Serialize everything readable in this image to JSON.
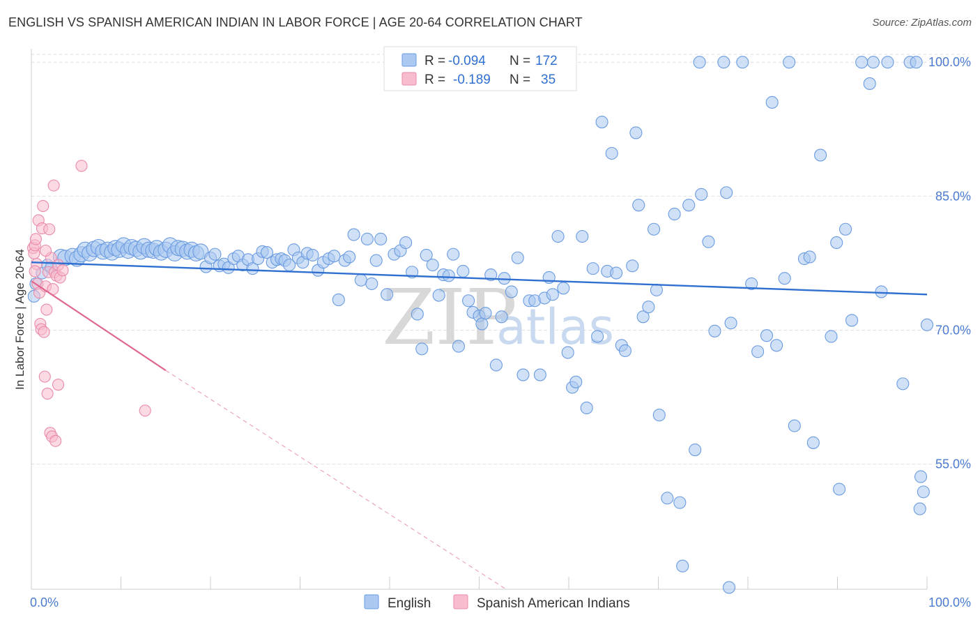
{
  "title": "ENGLISH VS SPANISH AMERICAN INDIAN IN LABOR FORCE | AGE 20-64 CORRELATION CHART",
  "source": "Source: ZipAtlas.com",
  "watermark": {
    "zip": "ZIP",
    "atlas": "atlas"
  },
  "colors": {
    "english_fill": "#aac8f0",
    "english_stroke": "#6a9be0",
    "english_line": "#2f6fd0",
    "spanish_fill": "#f7bccd",
    "spanish_stroke": "#e98aa8",
    "spanish_line": "#e06690",
    "grid": "#dddddd",
    "axis_text": "#4a7bd0"
  },
  "legend": {
    "rows": [
      {
        "r_label": "R =",
        "r_value": "-0.094",
        "n_label": "N =",
        "n_value": "172"
      },
      {
        "r_label": "R =",
        "r_value": "-0.189",
        "n_label": "N =",
        "n_value": "35"
      }
    ]
  },
  "bottom_legend": [
    "English",
    "Spanish American Indians"
  ],
  "chart_data": {
    "type": "scatter",
    "title": "ENGLISH VS SPANISH AMERICAN INDIAN IN LABOR FORCE | AGE 20-64 CORRELATION CHART",
    "xlabel": "",
    "ylabel": "In Labor Force | Age 20-64",
    "xlim": [
      0,
      100
    ],
    "ylim": [
      41,
      101.5
    ],
    "x_tick_labels": [
      "0.0%",
      "100.0%"
    ],
    "y_ticks": [
      55.0,
      70.0,
      85.0,
      100.0
    ],
    "y_tick_labels": [
      "55.0%",
      "70.0%",
      "85.0%",
      "100.0%"
    ],
    "grid": true,
    "legend_position": "top-center",
    "series": [
      {
        "name": "English",
        "r": -0.094,
        "n": 172,
        "trend": {
          "x": [
            0,
            100
          ],
          "y": [
            77.6,
            74.0
          ]
        },
        "points": [
          [
            0.3,
            73.8
          ],
          [
            0.5,
            75.2
          ],
          [
            1.2,
            76.4
          ],
          [
            1.8,
            77.3
          ],
          [
            2.2,
            77.0
          ],
          [
            3.3,
            78.2
          ],
          [
            3.8,
            78.1
          ],
          [
            4.6,
            78.3
          ],
          [
            5.1,
            78.0
          ],
          [
            5.6,
            78.5
          ],
          [
            6.0,
            79.0
          ],
          [
            6.5,
            78.6
          ],
          [
            7.0,
            79.1
          ],
          [
            7.5,
            79.3
          ],
          [
            8.0,
            78.8
          ],
          [
            8.5,
            79.0
          ],
          [
            9.0,
            78.7
          ],
          [
            9.4,
            79.2
          ],
          [
            9.8,
            79.0
          ],
          [
            10.3,
            79.5
          ],
          [
            10.8,
            78.9
          ],
          [
            11.2,
            79.3
          ],
          [
            11.7,
            79.1
          ],
          [
            12.2,
            78.8
          ],
          [
            12.6,
            79.4
          ],
          [
            13.1,
            79.0
          ],
          [
            13.6,
            78.9
          ],
          [
            14.0,
            79.2
          ],
          [
            14.5,
            78.7
          ],
          [
            15.0,
            79.0
          ],
          [
            15.5,
            79.5
          ],
          [
            16.0,
            78.6
          ],
          [
            16.4,
            79.2
          ],
          [
            16.9,
            79.1
          ],
          [
            17.4,
            78.8
          ],
          [
            17.9,
            79.0
          ],
          [
            18.4,
            78.6
          ],
          [
            18.9,
            78.8
          ],
          [
            19.5,
            77.1
          ],
          [
            20.0,
            78.1
          ],
          [
            20.5,
            78.5
          ],
          [
            21.0,
            77.2
          ],
          [
            21.5,
            77.4
          ],
          [
            22.0,
            77.0
          ],
          [
            22.6,
            78.0
          ],
          [
            23.1,
            78.3
          ],
          [
            23.6,
            77.3
          ],
          [
            24.2,
            77.9
          ],
          [
            24.7,
            76.9
          ],
          [
            25.3,
            78.0
          ],
          [
            25.8,
            78.8
          ],
          [
            26.3,
            78.7
          ],
          [
            26.9,
            77.6
          ],
          [
            27.4,
            77.9
          ],
          [
            27.9,
            78.0
          ],
          [
            28.3,
            77.8
          ],
          [
            28.8,
            77.3
          ],
          [
            29.3,
            79.0
          ],
          [
            29.8,
            78.1
          ],
          [
            30.3,
            77.6
          ],
          [
            30.8,
            78.6
          ],
          [
            31.4,
            78.4
          ],
          [
            32.0,
            76.7
          ],
          [
            32.6,
            77.6
          ],
          [
            33.2,
            78.0
          ],
          [
            33.8,
            78.3
          ],
          [
            34.3,
            73.4
          ],
          [
            35.0,
            77.8
          ],
          [
            35.5,
            78.2
          ],
          [
            36.0,
            80.7
          ],
          [
            36.8,
            75.6
          ],
          [
            37.5,
            80.2
          ],
          [
            38.0,
            75.2
          ],
          [
            38.5,
            77.8
          ],
          [
            39.0,
            80.2
          ],
          [
            39.7,
            74.0
          ],
          [
            40.5,
            78.5
          ],
          [
            41.2,
            78.9
          ],
          [
            41.8,
            79.8
          ],
          [
            42.5,
            76.5
          ],
          [
            43.1,
            71.8
          ],
          [
            43.6,
            67.9
          ],
          [
            44.1,
            78.4
          ],
          [
            44.8,
            77.3
          ],
          [
            45.5,
            73.9
          ],
          [
            46.0,
            76.2
          ],
          [
            46.6,
            76.1
          ],
          [
            47.1,
            78.5
          ],
          [
            47.7,
            68.2
          ],
          [
            48.2,
            76.6
          ],
          [
            48.8,
            73.3
          ],
          [
            49.3,
            72.0
          ],
          [
            50.0,
            71.6
          ],
          [
            50.3,
            70.7
          ],
          [
            50.7,
            71.9
          ],
          [
            51.3,
            76.2
          ],
          [
            51.9,
            66.1
          ],
          [
            52.5,
            71.5
          ],
          [
            52.8,
            75.8
          ],
          [
            53.6,
            74.3
          ],
          [
            54.3,
            78.1
          ],
          [
            54.9,
            65.0
          ],
          [
            55.6,
            73.3
          ],
          [
            56.2,
            73.3
          ],
          [
            56.8,
            65.0
          ],
          [
            57.3,
            73.6
          ],
          [
            57.8,
            75.9
          ],
          [
            58.2,
            74.0
          ],
          [
            58.8,
            80.5
          ],
          [
            59.4,
            74.7
          ],
          [
            59.9,
            67.5
          ],
          [
            60.4,
            63.6
          ],
          [
            60.8,
            64.2
          ],
          [
            61.5,
            80.5
          ],
          [
            62.0,
            61.3
          ],
          [
            62.7,
            76.9
          ],
          [
            63.2,
            69.3
          ],
          [
            63.7,
            93.3
          ],
          [
            64.3,
            76.6
          ],
          [
            64.8,
            89.8
          ],
          [
            65.3,
            76.4
          ],
          [
            65.9,
            68.3
          ],
          [
            66.3,
            67.7
          ],
          [
            67.1,
            77.2
          ],
          [
            67.5,
            92.1
          ],
          [
            67.8,
            84.0
          ],
          [
            68.3,
            71.5
          ],
          [
            68.9,
            72.6
          ],
          [
            69.5,
            81.3
          ],
          [
            69.8,
            74.5
          ],
          [
            70.1,
            60.5
          ],
          [
            71.0,
            51.2
          ],
          [
            71.8,
            83.0
          ],
          [
            72.4,
            50.7
          ],
          [
            72.7,
            43.6
          ],
          [
            73.4,
            84.0
          ],
          [
            74.1,
            56.6
          ],
          [
            74.8,
            85.2
          ],
          [
            74.6,
            100.0
          ],
          [
            75.6,
            79.9
          ],
          [
            76.3,
            69.9
          ],
          [
            77.3,
            100.0
          ],
          [
            77.6,
            85.4
          ],
          [
            77.9,
            41.2
          ],
          [
            78.1,
            70.8
          ],
          [
            79.4,
            100.0
          ],
          [
            80.4,
            75.2
          ],
          [
            81.1,
            67.6
          ],
          [
            82.1,
            69.4
          ],
          [
            82.7,
            95.5
          ],
          [
            83.2,
            68.3
          ],
          [
            84.1,
            75.8
          ],
          [
            84.6,
            100.0
          ],
          [
            85.2,
            59.3
          ],
          [
            86.3,
            78.0
          ],
          [
            86.9,
            78.2
          ],
          [
            87.3,
            57.4
          ],
          [
            88.1,
            89.6
          ],
          [
            89.3,
            69.3
          ],
          [
            89.9,
            79.8
          ],
          [
            90.2,
            52.2
          ],
          [
            90.9,
            81.3
          ],
          [
            91.6,
            71.1
          ],
          [
            92.7,
            100.0
          ],
          [
            93.6,
            97.6
          ],
          [
            94.0,
            100.0
          ],
          [
            94.9,
            74.3
          ],
          [
            97.3,
            64.0
          ],
          [
            98.1,
            100.0
          ],
          [
            98.8,
            100.0
          ],
          [
            99.2,
            50.0
          ],
          [
            99.3,
            53.6
          ],
          [
            99.6,
            51.9
          ],
          [
            100.0,
            70.6
          ],
          [
            95.6,
            100.0
          ]
        ]
      },
      {
        "name": "Spanish American Indians",
        "r": -0.189,
        "n": 35,
        "trend": {
          "x": [
            0,
            15
          ],
          "y": [
            75.5,
            65.5
          ]
        },
        "trend_extension": {
          "x": [
            15,
            53
          ],
          "y": [
            65.5,
            41
          ]
        },
        "points": [
          [
            0.2,
            79.2
          ],
          [
            0.3,
            78.6
          ],
          [
            0.4,
            79.5
          ],
          [
            0.5,
            80.2
          ],
          [
            0.6,
            77.4
          ],
          [
            0.7,
            75.2
          ],
          [
            0.8,
            82.3
          ],
          [
            0.9,
            74.2
          ],
          [
            1.0,
            70.7
          ],
          [
            1.1,
            70.1
          ],
          [
            1.2,
            81.4
          ],
          [
            1.3,
            83.9
          ],
          [
            1.4,
            69.8
          ],
          [
            1.5,
            64.8
          ],
          [
            1.6,
            74.9
          ],
          [
            1.7,
            72.3
          ],
          [
            1.8,
            62.9
          ],
          [
            1.9,
            76.5
          ],
          [
            2.0,
            81.3
          ],
          [
            2.1,
            58.5
          ],
          [
            2.2,
            78.1
          ],
          [
            2.3,
            58.1
          ],
          [
            2.4,
            74.6
          ],
          [
            2.5,
            86.2
          ],
          [
            2.6,
            76.5
          ],
          [
            2.7,
            57.6
          ],
          [
            2.8,
            76.1
          ],
          [
            3.0,
            77.3
          ],
          [
            3.2,
            75.9
          ],
          [
            3.5,
            76.7
          ],
          [
            5.6,
            88.4
          ],
          [
            3.0,
            63.9
          ],
          [
            0.4,
            76.6
          ],
          [
            1.6,
            78.9
          ],
          [
            12.7,
            61.0
          ]
        ]
      }
    ]
  }
}
